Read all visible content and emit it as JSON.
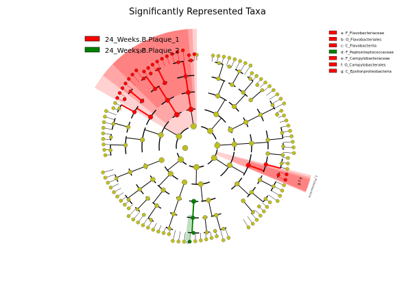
{
  "chart_data": {
    "type": "cladogram",
    "title": "Significantly Represented Taxa",
    "colors": {
      "24_Weeks.B.Plaque_1": "#ff0000",
      "24_Weeks.B.Plaque_2": "#008000",
      "nonsignificant": "#bfbf1f",
      "ring": "#000000"
    },
    "legend": {
      "position": "top-left",
      "items": [
        {
          "name": "24_Weeks.B.Plaque_1",
          "color": "#ff0000"
        },
        {
          "name": "24_Weeks.B.Plaque_2",
          "color": "#008000"
        }
      ]
    },
    "clade_legend": {
      "position": "top-right",
      "items": [
        {
          "label": "a: F_Flavobacteriaceae",
          "color": "#ff0000"
        },
        {
          "label": "b: O_Flavobacteriales",
          "color": "#ff0000"
        },
        {
          "label": "c: C_Flavobacteriia",
          "color": "#ff0000"
        },
        {
          "label": "d: F_Peptostreptococcaceae",
          "color": "#008000"
        },
        {
          "label": "e: F_Campylobacteraceae",
          "color": "#ff0000"
        },
        {
          "label": "f: O_Campylobacterales",
          "color": "#ff0000"
        },
        {
          "label": "g: C_Epsilonproteobacteria",
          "color": "#ff0000"
        }
      ]
    },
    "highlighted_clades": [
      {
        "letters": "c b a",
        "group": "24_Weeks.B.Plaque_1",
        "angle_start_deg": 300,
        "angle_end_deg": 360
      },
      {
        "letters": "g f e",
        "group": "24_Weeks.B.Plaque_1",
        "angle_start_deg": 104,
        "angle_end_deg": 113
      },
      {
        "letters": "d",
        "group": "24_Weeks.B.Plaque_2",
        "angle_start_deg": 184,
        "angle_end_deg": 187
      }
    ],
    "outer_label": "p_Proteobacteria"
  }
}
